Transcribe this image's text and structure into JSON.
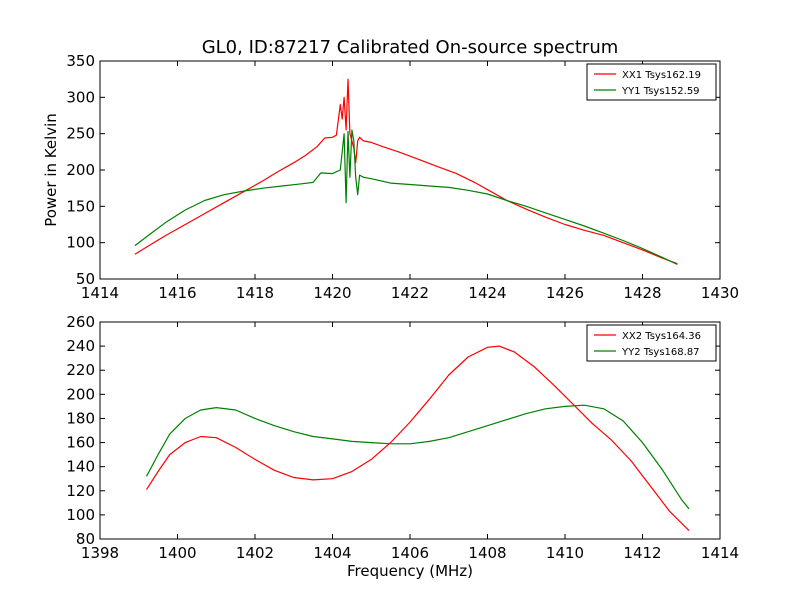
{
  "figure_title": "GL0, ID:87217 Calibrated On-source spectrum",
  "chart_data": [
    {
      "type": "line",
      "title": "GL0, ID:87217 Calibrated On-source spectrum",
      "xlabel": "",
      "ylabel": "Power in Kelvin",
      "xlim": [
        1414,
        1430
      ],
      "ylim": [
        50,
        350
      ],
      "xticks": [
        1414,
        1416,
        1418,
        1420,
        1422,
        1424,
        1426,
        1428,
        1430
      ],
      "yticks": [
        50,
        100,
        150,
        200,
        250,
        300,
        350
      ],
      "grid": false,
      "legend_position": "top-right",
      "series": [
        {
          "name": "XX1 Tsys162.19",
          "color": "#ff0000",
          "x": [
            1414.9,
            1415.3,
            1415.7,
            1416.2,
            1416.7,
            1417.2,
            1417.7,
            1418.2,
            1418.6,
            1419.0,
            1419.3,
            1419.6,
            1419.8,
            1420.0,
            1420.1,
            1420.2,
            1420.25,
            1420.3,
            1420.35,
            1420.4,
            1420.45,
            1420.5,
            1420.55,
            1420.6,
            1420.65,
            1420.7,
            1420.8,
            1421.0,
            1421.3,
            1421.7,
            1422.2,
            1422.7,
            1423.2,
            1423.7,
            1424.1,
            1424.5,
            1425.0,
            1425.5,
            1426.0,
            1426.5,
            1427.0,
            1427.5,
            1428.0,
            1428.5,
            1428.9
          ],
          "y": [
            84,
            97,
            110,
            125,
            140,
            155,
            170,
            185,
            198,
            210,
            220,
            232,
            244,
            245,
            248,
            290,
            270,
            300,
            255,
            325,
            250,
            240,
            230,
            210,
            240,
            245,
            240,
            238,
            232,
            225,
            215,
            205,
            195,
            182,
            170,
            158,
            146,
            135,
            125,
            117,
            110,
            100,
            90,
            79,
            71
          ]
        },
        {
          "name": "YY1 Tsys152.59",
          "color": "#008000",
          "x": [
            1414.9,
            1415.3,
            1415.7,
            1416.2,
            1416.7,
            1417.2,
            1417.7,
            1418.2,
            1418.7,
            1419.2,
            1419.5,
            1419.7,
            1420.0,
            1420.2,
            1420.3,
            1420.35,
            1420.4,
            1420.45,
            1420.5,
            1420.55,
            1420.6,
            1420.65,
            1420.7,
            1420.8,
            1421.0,
            1421.5,
            1422.0,
            1422.5,
            1423.0,
            1423.5,
            1424.0,
            1424.5,
            1425.0,
            1425.5,
            1426.0,
            1426.5,
            1427.0,
            1427.5,
            1428.0,
            1428.5,
            1428.9
          ],
          "y": [
            96,
            112,
            128,
            145,
            158,
            166,
            171,
            175,
            178,
            181,
            183,
            196,
            195,
            200,
            250,
            155,
            253,
            190,
            255,
            240,
            190,
            166,
            193,
            190,
            188,
            182,
            180,
            178,
            176,
            172,
            167,
            158,
            150,
            141,
            132,
            123,
            113,
            103,
            92,
            80,
            70
          ]
        }
      ]
    },
    {
      "type": "line",
      "title": "",
      "xlabel": "Frequency (MHz)",
      "ylabel": "",
      "xlim": [
        1398,
        1414
      ],
      "ylim": [
        80,
        260
      ],
      "xticks": [
        1398,
        1400,
        1402,
        1404,
        1406,
        1408,
        1410,
        1412,
        1414
      ],
      "yticks": [
        80,
        100,
        120,
        140,
        160,
        180,
        200,
        220,
        240,
        260
      ],
      "grid": false,
      "legend_position": "top-right",
      "series": [
        {
          "name": "XX2 Tsys164.36",
          "color": "#ff0000",
          "x": [
            1399.2,
            1399.5,
            1399.8,
            1400.2,
            1400.6,
            1401.0,
            1401.5,
            1402.0,
            1402.5,
            1403.0,
            1403.5,
            1404.0,
            1404.5,
            1405.0,
            1405.5,
            1406.0,
            1406.5,
            1407.0,
            1407.5,
            1408.0,
            1408.3,
            1408.7,
            1409.2,
            1409.7,
            1410.2,
            1410.7,
            1411.2,
            1411.7,
            1412.2,
            1412.7,
            1413.2
          ],
          "y": [
            121,
            136,
            150,
            160,
            165,
            164,
            156,
            146,
            137,
            131,
            129,
            130,
            136,
            146,
            160,
            177,
            196,
            216,
            231,
            239,
            240,
            235,
            223,
            208,
            192,
            176,
            162,
            145,
            124,
            103,
            87
          ]
        },
        {
          "name": "YY2 Tsys168.87",
          "color": "#008000",
          "x": [
            1399.2,
            1399.5,
            1399.8,
            1400.2,
            1400.6,
            1401.0,
            1401.5,
            1402.0,
            1402.5,
            1403.0,
            1403.5,
            1404.0,
            1404.5,
            1405.0,
            1405.5,
            1406.0,
            1406.5,
            1407.0,
            1407.5,
            1408.0,
            1408.5,
            1409.0,
            1409.5,
            1410.0,
            1410.5,
            1411.0,
            1411.5,
            1412.0,
            1412.5,
            1413.0,
            1413.2
          ],
          "y": [
            132,
            150,
            167,
            180,
            187,
            189,
            187,
            180,
            174,
            169,
            165,
            163,
            161,
            160,
            159,
            159,
            161,
            164,
            169,
            174,
            179,
            184,
            188,
            190,
            191,
            188,
            178,
            160,
            138,
            113,
            105
          ]
        }
      ]
    }
  ]
}
